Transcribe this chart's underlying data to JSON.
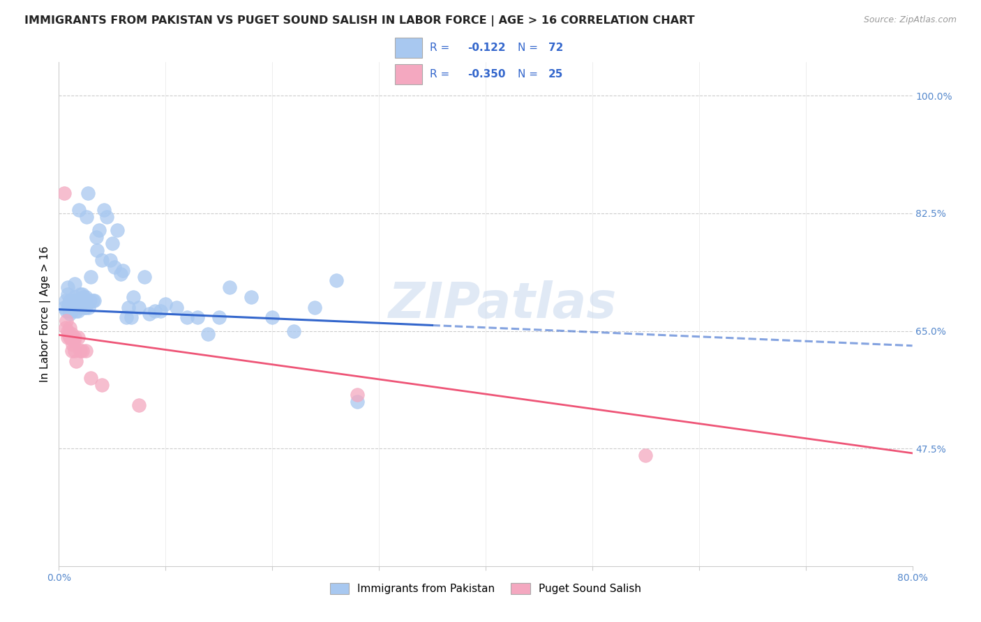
{
  "title": "IMMIGRANTS FROM PAKISTAN VS PUGET SOUND SALISH IN LABOR FORCE | AGE > 16 CORRELATION CHART",
  "source": "Source: ZipAtlas.com",
  "ylabel": "In Labor Force | Age > 16",
  "xlim": [
    0.0,
    0.8
  ],
  "ylim": [
    0.3,
    1.05
  ],
  "ytick_right_labels": [
    "100.0%",
    "82.5%",
    "65.0%",
    "47.5%"
  ],
  "ytick_right_vals": [
    1.0,
    0.825,
    0.65,
    0.475
  ],
  "watermark": "ZIPatlas",
  "blue_color": "#A8C8F0",
  "pink_color": "#F4A8C0",
  "blue_line_color": "#3366CC",
  "pink_line_color": "#EE5577",
  "blue_R": "-0.122",
  "blue_N": "72",
  "pink_R": "-0.350",
  "pink_N": "25",
  "legend_blue_label": "Immigrants from Pakistan",
  "legend_pink_label": "Puget Sound Salish",
  "blue_points_x": [
    0.005,
    0.006,
    0.007,
    0.008,
    0.008,
    0.009,
    0.01,
    0.01,
    0.01,
    0.011,
    0.012,
    0.012,
    0.013,
    0.014,
    0.015,
    0.015,
    0.015,
    0.016,
    0.017,
    0.018,
    0.018,
    0.019,
    0.02,
    0.02,
    0.021,
    0.022,
    0.022,
    0.023,
    0.024,
    0.025,
    0.025,
    0.026,
    0.027,
    0.028,
    0.029,
    0.03,
    0.032,
    0.033,
    0.035,
    0.036,
    0.038,
    0.04,
    0.042,
    0.045,
    0.048,
    0.05,
    0.052,
    0.055,
    0.058,
    0.06,
    0.063,
    0.065,
    0.068,
    0.07,
    0.075,
    0.08,
    0.085,
    0.09,
    0.095,
    0.1,
    0.11,
    0.12,
    0.13,
    0.14,
    0.15,
    0.16,
    0.18,
    0.2,
    0.22,
    0.24,
    0.26,
    0.28
  ],
  "blue_points_y": [
    0.685,
    0.695,
    0.68,
    0.715,
    0.705,
    0.69,
    0.675,
    0.68,
    0.695,
    0.68,
    0.68,
    0.695,
    0.685,
    0.69,
    0.685,
    0.7,
    0.72,
    0.68,
    0.695,
    0.68,
    0.695,
    0.83,
    0.685,
    0.705,
    0.69,
    0.69,
    0.705,
    0.7,
    0.685,
    0.685,
    0.7,
    0.82,
    0.855,
    0.685,
    0.695,
    0.73,
    0.695,
    0.695,
    0.79,
    0.77,
    0.8,
    0.755,
    0.83,
    0.82,
    0.755,
    0.78,
    0.745,
    0.8,
    0.735,
    0.74,
    0.67,
    0.685,
    0.67,
    0.7,
    0.685,
    0.73,
    0.675,
    0.68,
    0.68,
    0.69,
    0.685,
    0.67,
    0.67,
    0.645,
    0.67,
    0.715,
    0.7,
    0.67,
    0.65,
    0.685,
    0.725,
    0.545
  ],
  "pink_points_x": [
    0.005,
    0.006,
    0.007,
    0.008,
    0.008,
    0.009,
    0.01,
    0.01,
    0.011,
    0.012,
    0.012,
    0.013,
    0.014,
    0.015,
    0.015,
    0.016,
    0.018,
    0.02,
    0.022,
    0.025,
    0.03,
    0.04,
    0.075,
    0.28,
    0.55
  ],
  "pink_points_y": [
    0.855,
    0.655,
    0.665,
    0.64,
    0.65,
    0.645,
    0.655,
    0.64,
    0.64,
    0.645,
    0.62,
    0.63,
    0.635,
    0.64,
    0.62,
    0.605,
    0.64,
    0.62,
    0.62,
    0.62,
    0.58,
    0.57,
    0.54,
    0.555,
    0.465
  ],
  "blue_trend_y_start": 0.682,
  "blue_trend_y_end": 0.628,
  "pink_trend_y_start": 0.644,
  "pink_trend_y_end": 0.468,
  "grid_color": "#CCCCCC",
  "background_color": "#FFFFFF",
  "title_fontsize": 11.5,
  "axis_label_fontsize": 11,
  "tick_fontsize": 10,
  "legend_text_color": "#3366CC",
  "right_tick_color": "#5588CC"
}
